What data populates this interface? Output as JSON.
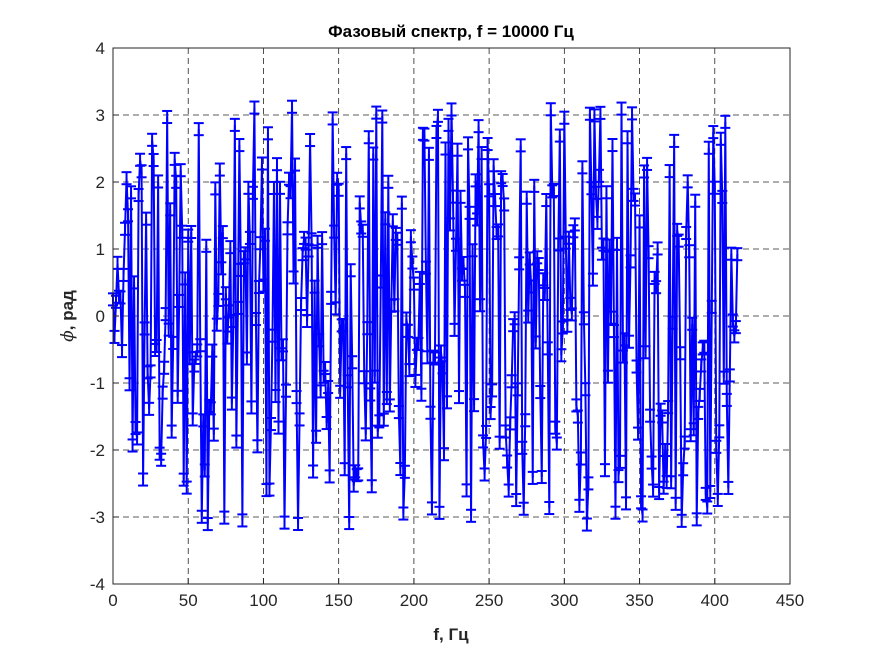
{
  "chart_data": {
    "type": "errorbar",
    "title": "Фазовый спектр, f = 10000 Гц",
    "xlabel": "f, Гц",
    "ylabel_symbol": "ϕ",
    "ylabel_text": ", рад",
    "xlim": [
      0,
      450
    ],
    "ylim": [
      -4,
      4
    ],
    "xticks": [
      0,
      50,
      100,
      150,
      200,
      250,
      300,
      350,
      400,
      450
    ],
    "yticks": [
      -4,
      -3,
      -2,
      -1,
      0,
      1,
      2,
      3,
      4
    ],
    "grid": "dashed",
    "series_color": "#0000ff",
    "x_start": 0,
    "x_end": 415,
    "x_step": 1,
    "phase_range": [
      -3.14,
      3.14
    ],
    "error_half_width": 0.09,
    "note_visible_only": "dense phase values wrapped in [-pi, pi] for each frequency bin"
  }
}
